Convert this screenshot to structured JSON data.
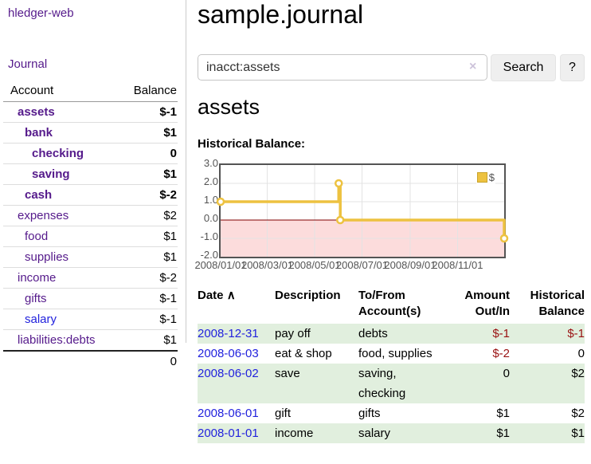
{
  "colors": {
    "link_purple": "#551a8b",
    "link_blue": "#2222dd",
    "negative_dark": "#991111",
    "negative_faded": "#bd7b7b",
    "row_green": "#e1efde",
    "chart_gold": "#edc240",
    "chart_negative_fill": "#fcdcdc",
    "chart_zero_line": "#800000"
  },
  "app": {
    "title": "hledger-web",
    "nav_journal": "Journal"
  },
  "sidebar": {
    "headers": {
      "account": "Account",
      "balance": "Balance"
    },
    "accounts": [
      {
        "name": "assets",
        "balance": "$-1"
      },
      {
        "name": "bank",
        "balance": "$1"
      },
      {
        "name": "checking",
        "balance": "0"
      },
      {
        "name": "saving",
        "balance": "$1"
      },
      {
        "name": "cash",
        "balance": "$-2"
      },
      {
        "name": "expenses",
        "balance": "$2"
      },
      {
        "name": "food",
        "balance": "$1"
      },
      {
        "name": "supplies",
        "balance": "$1"
      },
      {
        "name": "income",
        "balance": "$-2"
      },
      {
        "name": "gifts",
        "balance": "$-1"
      },
      {
        "name": "salary",
        "balance": "$-1"
      },
      {
        "name": "liabilities:debts",
        "balance": "$1"
      }
    ],
    "total": "0"
  },
  "main": {
    "title": "sample.journal",
    "search": {
      "value": "inacct:assets",
      "clear": "×",
      "button": "Search",
      "help": "?"
    },
    "heading": "assets",
    "chart_title": "Historical Balance:"
  },
  "chart_data": {
    "type": "line",
    "title": "Historical Balance:",
    "step": true,
    "series": [
      {
        "name": "$",
        "color": "#edc240",
        "points": [
          [
            "2008-01-01",
            1
          ],
          [
            "2008-06-01",
            2
          ],
          [
            "2008-06-03",
            0
          ],
          [
            "2008-12-31",
            -1
          ]
        ]
      }
    ],
    "ylim": [
      -2,
      3
    ],
    "yticks": [
      "3.0",
      "2.0",
      "1.0",
      "0.0",
      "-1.0",
      "-2.0"
    ],
    "xticks": [
      "2008/01/01",
      "2008/03/01",
      "2008/05/01",
      "2008/07/01",
      "2008/09/01",
      "2008/11/01"
    ],
    "x_range": [
      "2008-01-01",
      "2008-12-31"
    ],
    "grid": true,
    "negative_fill": "#fcdcdc",
    "zero_line": "#800000",
    "legend": {
      "label": "$",
      "position": "top-right"
    }
  },
  "register": {
    "headers": {
      "date": "Date",
      "sort_icon": "∧",
      "description": "Description",
      "tofrom": [
        "To/From",
        "Account(s)"
      ],
      "amount": [
        "Amount",
        "Out/In"
      ],
      "balance": [
        "Historical",
        "Balance"
      ]
    },
    "rows": [
      {
        "date": "2008-12-31",
        "description": "pay off",
        "accounts": "debts",
        "amount": "$-1",
        "balance": "$-1"
      },
      {
        "date": "2008-06-03",
        "description": "eat & shop",
        "accounts": "food, supplies",
        "amount": "$-2",
        "balance": "0"
      },
      {
        "date": "2008-06-02",
        "description": "save",
        "accounts": [
          "saving,",
          "checking"
        ],
        "amount": "0",
        "balance": "$2"
      },
      {
        "date": "2008-06-01",
        "description": "gift",
        "accounts": "gifts",
        "amount": "$1",
        "balance": "$2"
      },
      {
        "date": "2008-01-01",
        "description": "income",
        "accounts": "salary",
        "amount": "$1",
        "balance": "$1"
      }
    ]
  }
}
